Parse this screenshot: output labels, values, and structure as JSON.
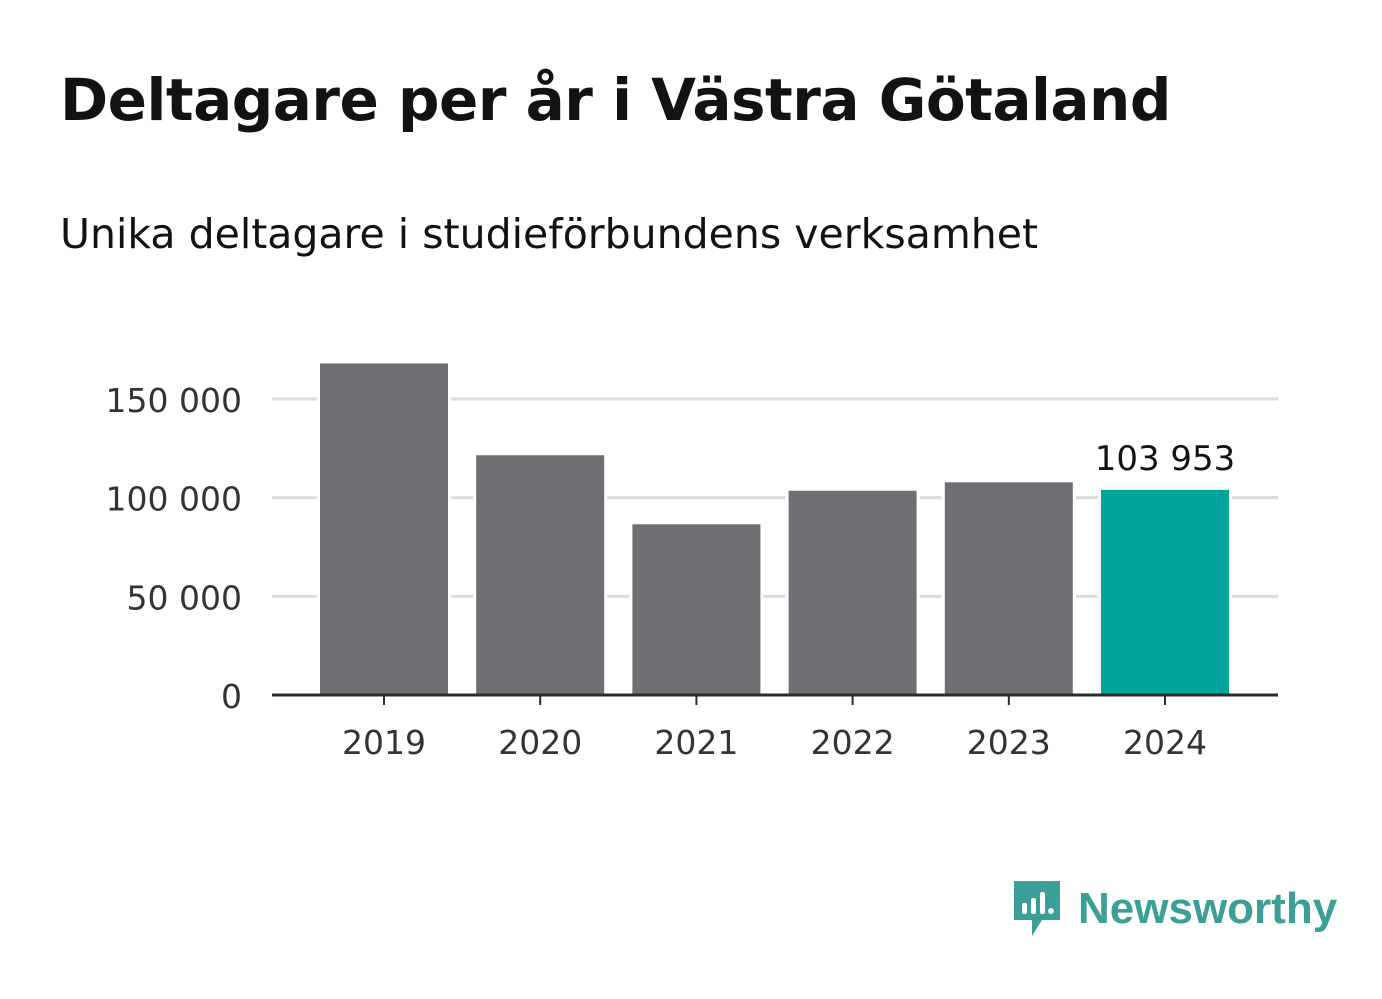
{
  "header": {
    "title": "Deltagare per år i Västra Götaland",
    "subtitle": "Unika deltagare i studieförbundens verksamhet"
  },
  "chart_data": {
    "type": "bar",
    "categories": [
      "2019",
      "2020",
      "2021",
      "2022",
      "2023",
      "2024"
    ],
    "values": [
      168000,
      121500,
      86500,
      103500,
      107800,
      103953
    ],
    "highlight_index": 5,
    "data_labels": [
      {
        "index": 5,
        "text": "103 953"
      }
    ],
    "ylim": [
      0,
      160000
    ],
    "y_ticks": [
      {
        "value": 0,
        "label": "0"
      },
      {
        "value": 50000,
        "label": "50 000"
      },
      {
        "value": 100000,
        "label": "100 000"
      },
      {
        "value": 150000,
        "label": "150 000"
      }
    ],
    "grid": true,
    "colors": {
      "bar": "#6e6e73",
      "highlight": "#00a49a",
      "grid": "#dcdcdc",
      "axis": "#2b2b2b",
      "text": "#333333"
    }
  },
  "brand": {
    "name": "Newsworthy",
    "icon": "newsworthy-logo-icon",
    "color": "#3b9e97"
  }
}
